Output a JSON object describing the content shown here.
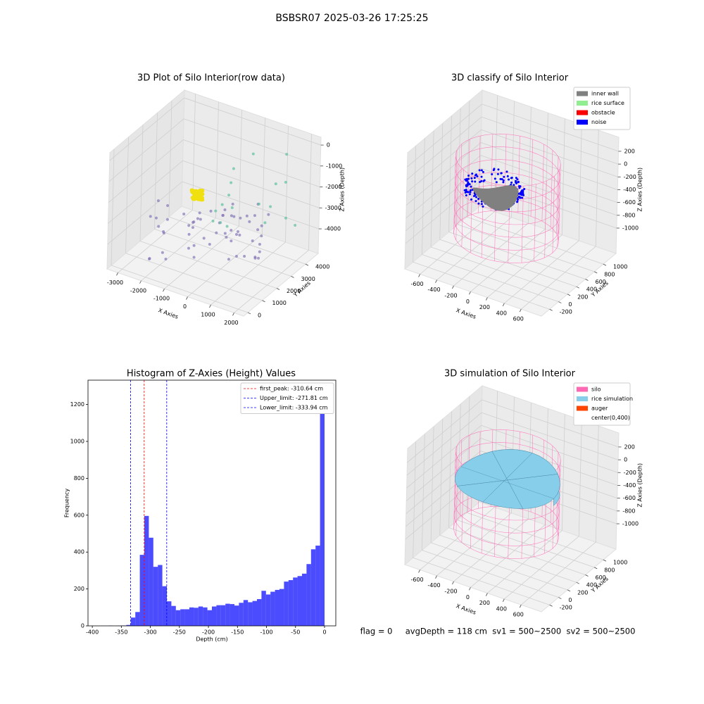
{
  "suptitle": "BSBSR07 2025-03-26 17:25:25",
  "chart_data": [
    {
      "type": "scatter3d",
      "title": "3D Plot of Silo Interior(row data)",
      "xlabel": "X Axies",
      "ylabel": "Y Axies",
      "zlabel": "Z Axies (Depth)",
      "xlim": [
        -3470,
        2410
      ],
      "xticks": [
        -3000,
        -2000,
        -1000,
        0,
        1000,
        2000
      ],
      "ylim": [
        -295,
        4880
      ],
      "yticks": [
        0,
        1000,
        2000,
        3000,
        4000
      ],
      "zlim": [
        -5176,
        372
      ],
      "zticks": [
        -4000,
        -3000,
        -2000,
        -1000,
        0
      ],
      "grid": true
    },
    {
      "type": "classify3d",
      "title": "3D classify of Silo Interior",
      "xlabel": "X Axies",
      "ylabel": "Y Axies",
      "zlabel": "Z Axies (Depth)",
      "xlim": [
        -780,
        840
      ],
      "xticks": [
        -600,
        -400,
        -200,
        0,
        200,
        400,
        600
      ],
      "ylim": [
        -383,
        1284
      ],
      "yticks": [
        -200,
        0,
        200,
        400,
        600,
        800,
        1000
      ],
      "zlim": [
        -1396,
        419
      ],
      "zticks": [
        -1000,
        -800,
        -600,
        -400,
        -200,
        0,
        200
      ],
      "grid": true,
      "legend": [
        {
          "name": "inner wall",
          "color": "#808080"
        },
        {
          "name": "rice surface",
          "color": "#90ee90"
        },
        {
          "name": "obstacle",
          "color": "#ff0000"
        },
        {
          "name": "noise",
          "color": "#0000ff"
        }
      ]
    },
    {
      "type": "histogram",
      "title": "Histogram of Z-Axies (Height) Values",
      "xlabel": "Depth (cm)",
      "ylabel": "Frequency",
      "bins": [
        -388.0,
        -380.24,
        -372.48,
        -364.72,
        -356.96,
        -349.2,
        -341.44,
        -333.68,
        -325.92,
        -318.16,
        -310.4,
        -302.64,
        -294.88,
        -287.12,
        -279.36,
        -271.6,
        -263.84,
        -256.08,
        -248.32,
        -240.56,
        -232.8,
        -225.04,
        -217.28,
        -209.52,
        -201.76,
        -194.0,
        -186.24,
        -178.48,
        -170.72,
        -162.96,
        -155.2,
        -147.44,
        -139.68,
        -131.92,
        -124.16,
        -116.4,
        -108.64,
        -100.88,
        -93.12,
        -85.36,
        -77.6,
        -69.84,
        -62.08,
        -54.32,
        -46.56,
        -38.8,
        -31.04,
        -23.28,
        -15.52,
        -7.76,
        0.0
      ],
      "values": [
        0,
        0,
        1,
        0,
        1,
        2,
        5,
        45,
        75,
        385,
        596,
        478,
        320,
        330,
        215,
        133,
        108,
        85,
        90,
        90,
        100,
        98,
        105,
        100,
        85,
        105,
        112,
        112,
        120,
        118,
        110,
        125,
        140,
        128,
        135,
        145,
        190,
        170,
        185,
        195,
        200,
        240,
        248,
        262,
        270,
        283,
        335,
        415,
        435,
        1265
      ],
      "color": "#0000ff",
      "alpha": 0.7,
      "xlim": [
        -407.4,
        19.4
      ],
      "xticks": [
        -400,
        -350,
        -300,
        -250,
        -200,
        -150,
        -100,
        -50,
        0
      ],
      "ylim": [
        0,
        1332
      ],
      "yticks": [
        0,
        200,
        400,
        600,
        800,
        1000,
        1200
      ],
      "vlines": [
        {
          "name": "first_peak: -310.64 cm",
          "value": -310.64,
          "color": "#ff0000"
        },
        {
          "name": "Upper_limit: -271.81 cm",
          "value": -271.81,
          "color": "#0000ff"
        },
        {
          "name": "Lower_limit: -333.94 cm",
          "value": -333.94,
          "color": "#0000ff"
        }
      ],
      "legend_position": "upper right"
    },
    {
      "type": "simulation3d",
      "title": "3D simulation of Silo Interior",
      "xlabel": "X Axies",
      "ylabel": "Y Axies",
      "zlabel": "Z Axies (Depth)",
      "xlim": [
        -780,
        840
      ],
      "xticks": [
        -600,
        -400,
        -200,
        0,
        200,
        400,
        600
      ],
      "ylim": [
        -383,
        1284
      ],
      "yticks": [
        -200,
        0,
        200,
        400,
        600,
        800,
        1000
      ],
      "zlim": [
        -1396,
        419
      ],
      "zticks": [
        -1000,
        -800,
        -600,
        -400,
        -200,
        0,
        200
      ],
      "grid": true,
      "legend": [
        {
          "name": "silo",
          "color": "#ff69b4"
        },
        {
          "name": "rice simulation",
          "color": "#87ceeb"
        },
        {
          "name": "auger",
          "color": "#ff4500"
        },
        {
          "name": "center(0,400)",
          "color": "#ffffff"
        }
      ]
    }
  ],
  "footer": "flag = 0     avgDepth = 118 cm  sv1 = 500~2500  sv2 = 500~2500"
}
